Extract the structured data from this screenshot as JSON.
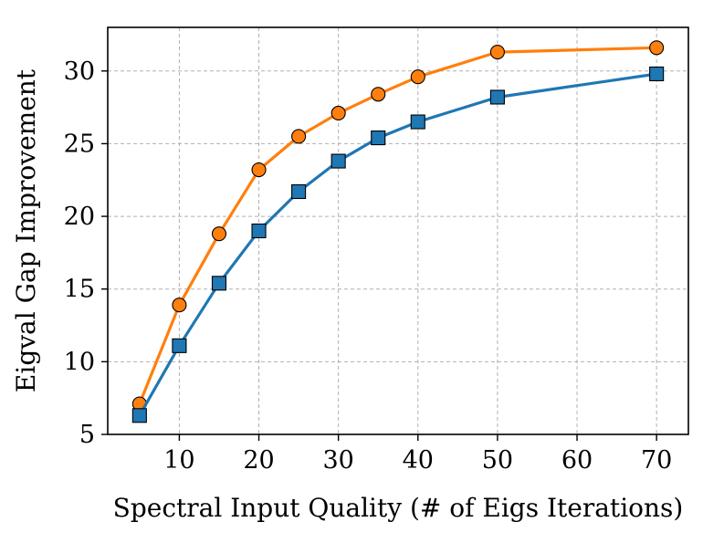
{
  "chart_data": {
    "type": "line",
    "title": "",
    "xlabel": "Spectral Input Quality (# of Eigs Iterations)",
    "ylabel": "Eigval Gap Improvement",
    "xlim": [
      1,
      74
    ],
    "ylim": [
      5,
      33
    ],
    "xticks": [
      10,
      20,
      30,
      40,
      50,
      60,
      70
    ],
    "yticks": [
      5,
      10,
      15,
      20,
      25,
      30
    ],
    "grid": true,
    "x": [
      5,
      10,
      15,
      20,
      25,
      30,
      35,
      40,
      50,
      70
    ],
    "series": [
      {
        "name": "series-orange-circle",
        "color": "#ff7f0e",
        "marker": "circle",
        "values": [
          7.1,
          13.9,
          18.8,
          23.2,
          25.5,
          27.1,
          28.4,
          29.6,
          31.3,
          31.6
        ]
      },
      {
        "name": "series-blue-square",
        "color": "#1f77b4",
        "marker": "square",
        "values": [
          6.3,
          11.1,
          15.4,
          19.0,
          21.7,
          23.8,
          25.4,
          26.5,
          28.2,
          29.8
        ]
      }
    ]
  }
}
